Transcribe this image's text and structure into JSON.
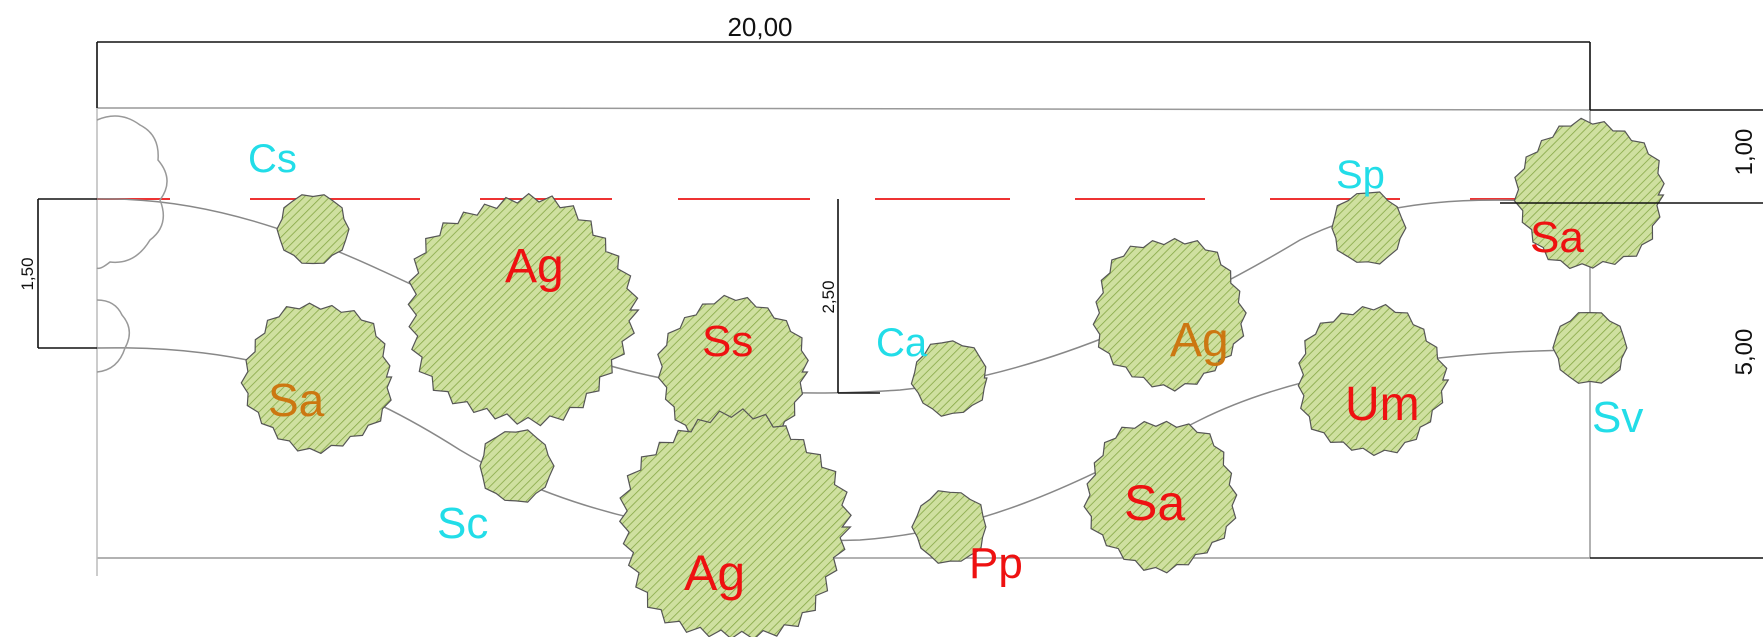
{
  "dimensions": {
    "overall_width": "20,00",
    "left_offset": "1,50",
    "center_depth": "2,50",
    "right_top": "1,00",
    "right_main": "5,00"
  },
  "colors": {
    "tree_fill": "#cfe0a0",
    "tree_hatch": "#7fa23c",
    "tree_outline": "#555555",
    "label_red": "#ee1111",
    "label_cyan": "#22dde8",
    "label_orange": "#cc7711",
    "dashed_line": "#ee3333",
    "line": "#111111",
    "thin_line": "#888888"
  },
  "trees": [
    {
      "label": "Cs",
      "color": "cyan"
    },
    {
      "label": "Ag",
      "color": "red"
    },
    {
      "label": "Ss",
      "color": "red"
    },
    {
      "label": "Ca",
      "color": "cyan"
    },
    {
      "label": "Ag",
      "color": "orange"
    },
    {
      "label": "Sp",
      "color": "cyan"
    },
    {
      "label": "Sa",
      "color": "red"
    },
    {
      "label": "Sa",
      "color": "orange"
    },
    {
      "label": "Sc",
      "color": "cyan"
    },
    {
      "label": "Ag",
      "color": "red"
    },
    {
      "label": "Pp",
      "color": "red"
    },
    {
      "label": "Sa",
      "color": "red"
    },
    {
      "label": "Um",
      "color": "red"
    },
    {
      "label": "Sv",
      "color": "cyan"
    }
  ]
}
